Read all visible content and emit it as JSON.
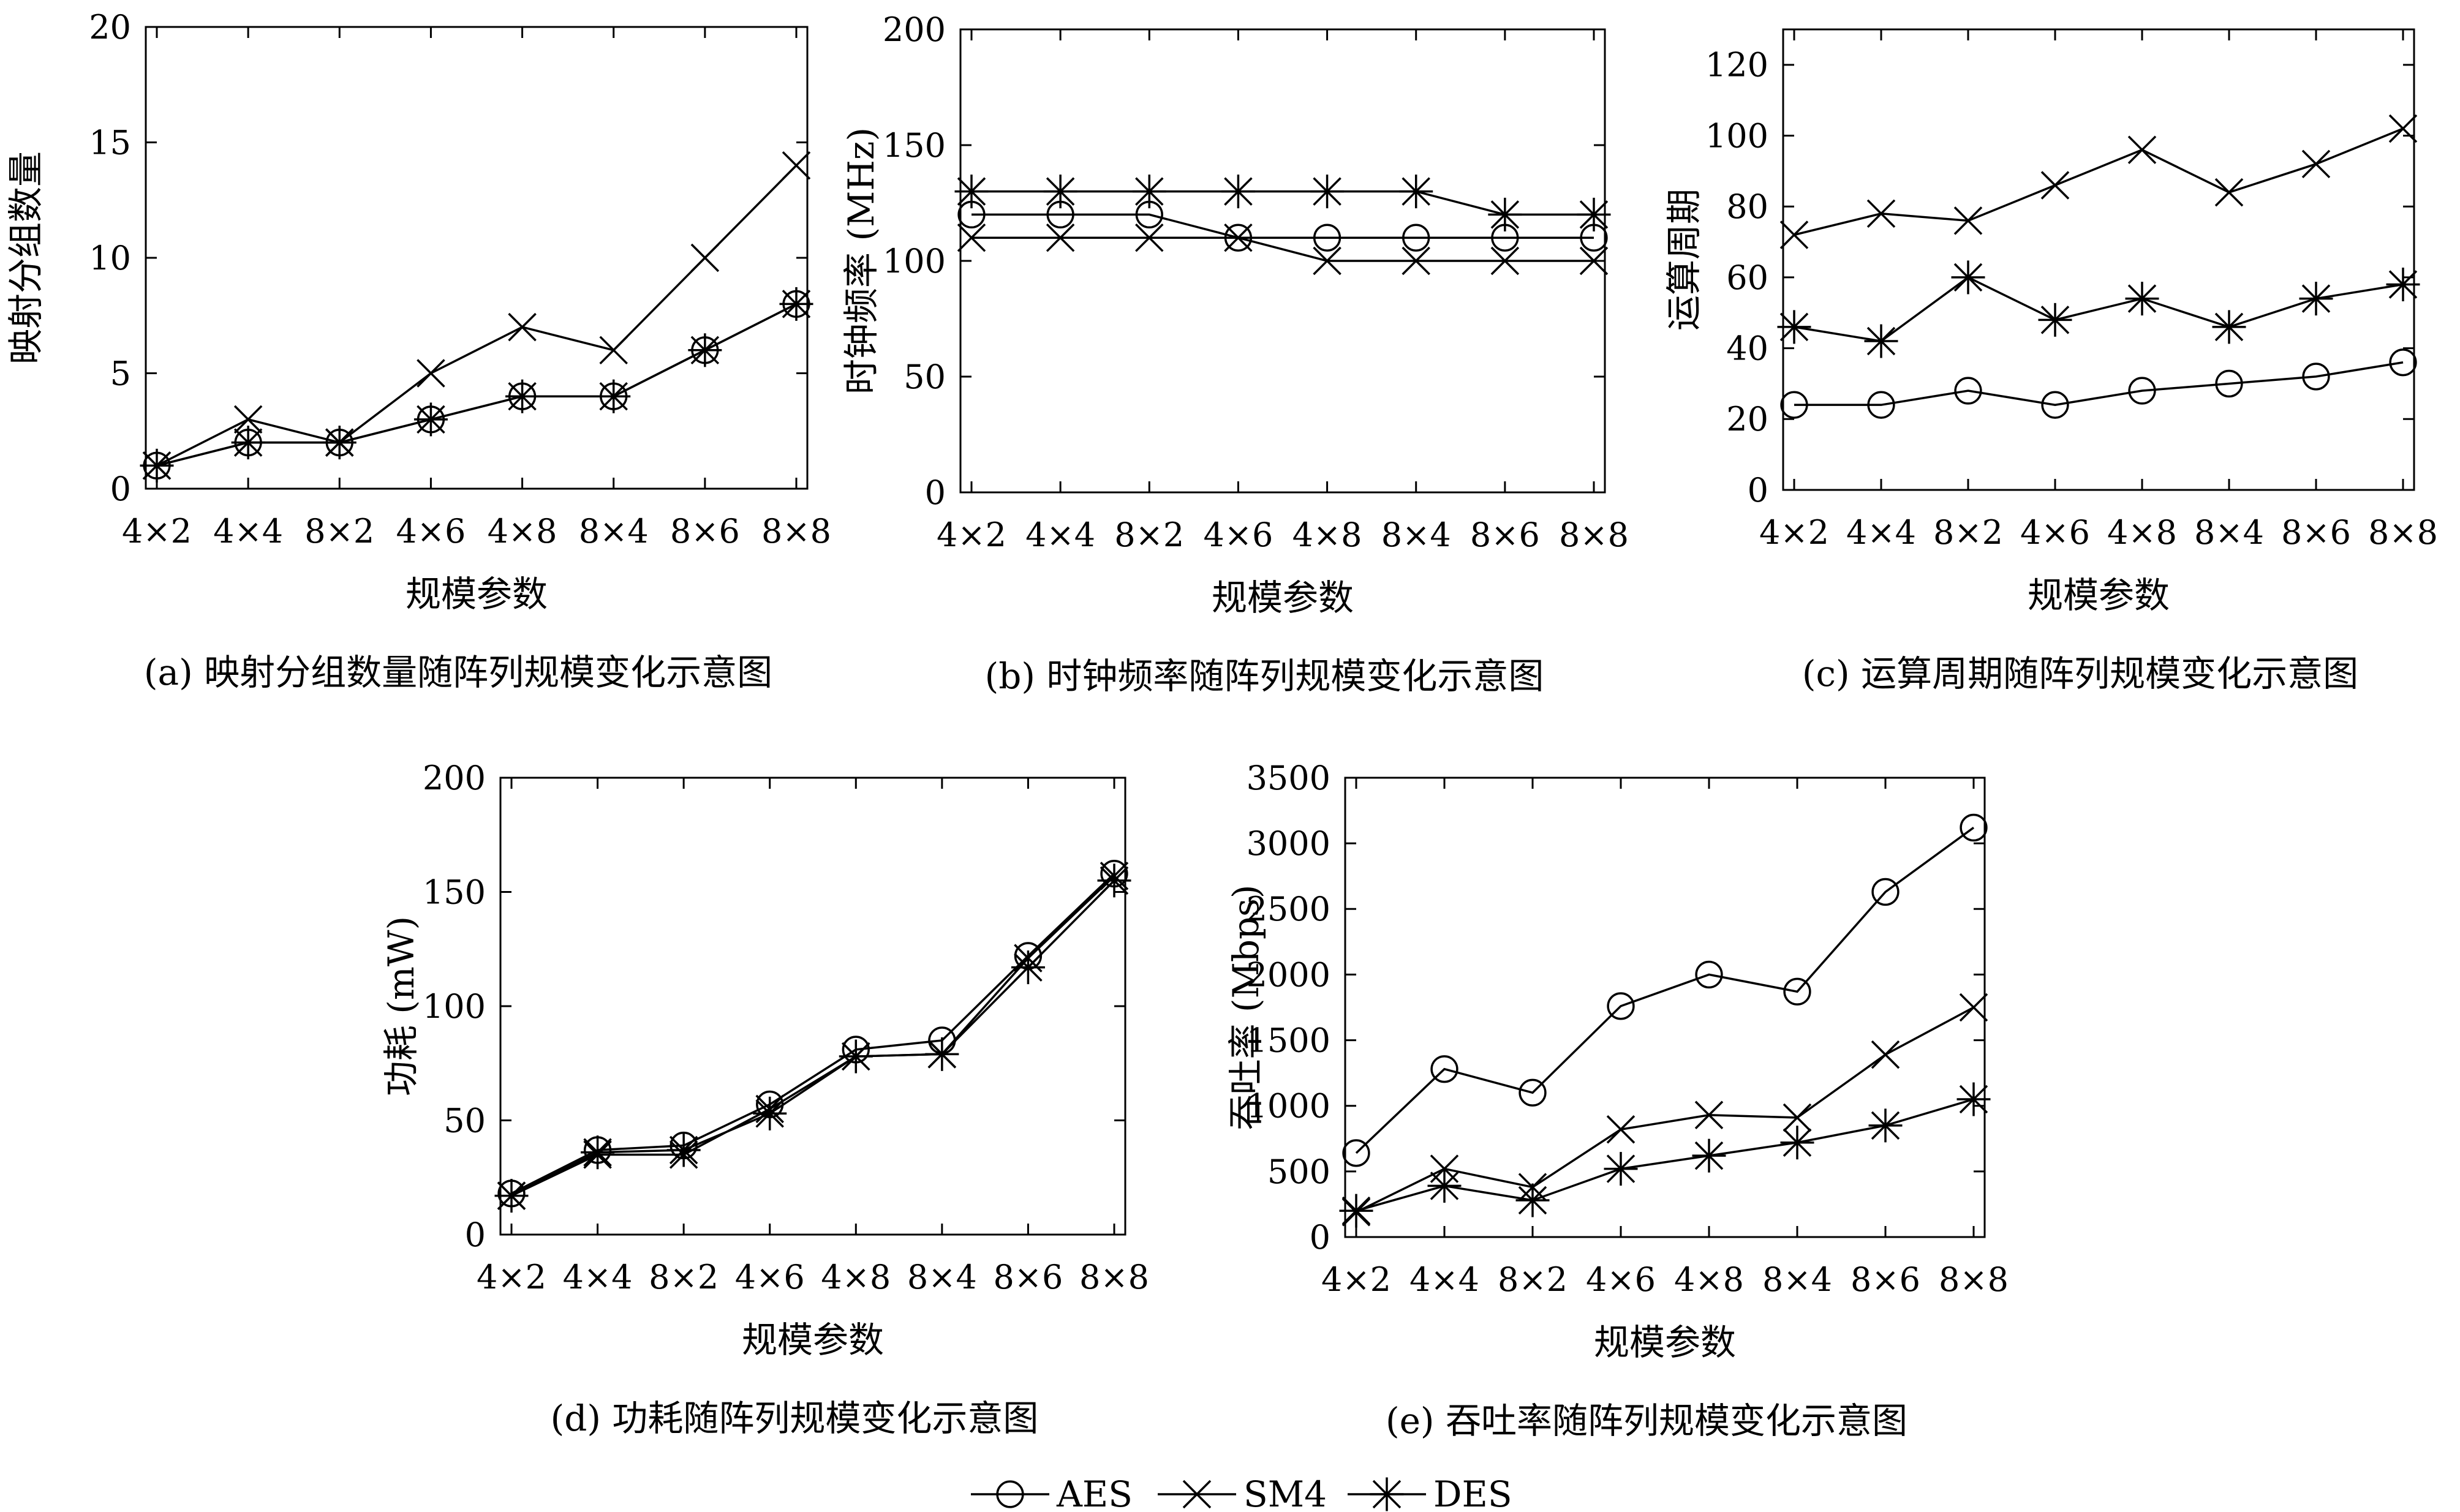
{
  "chart_data": [
    {
      "type": "line",
      "caption": "(a) 映射分组数量随阵列规模变化示意图",
      "xlabel": "规模参数",
      "ylabel": "映射分组数量",
      "categories": [
        "4×2",
        "4×4",
        "8×2",
        "4×6",
        "4×8",
        "8×4",
        "8×6",
        "8×8"
      ],
      "ylim": [
        0,
        20
      ],
      "yticks": [
        0,
        5,
        10,
        15,
        20
      ],
      "grid": false,
      "series": [
        {
          "name": "AES",
          "marker": "circle",
          "values": [
            1,
            2,
            2,
            3,
            4,
            4,
            6,
            8
          ]
        },
        {
          "name": "SM4",
          "marker": "cross",
          "values": [
            1,
            3,
            2,
            5,
            7,
            6,
            10,
            14
          ]
        },
        {
          "name": "DES",
          "marker": "asterisk",
          "values": [
            1,
            2,
            2,
            3,
            4,
            4,
            6,
            8
          ]
        }
      ]
    },
    {
      "type": "line",
      "caption": "(b) 时钟频率随阵列规模变化示意图",
      "xlabel": "规模参数",
      "ylabel": "时钟频率 (MHz)",
      "categories": [
        "4×2",
        "4×4",
        "8×2",
        "4×6",
        "4×8",
        "8×4",
        "8×6",
        "8×8"
      ],
      "ylim": [
        0,
        200
      ],
      "yticks": [
        0,
        50,
        100,
        150,
        200
      ],
      "grid": false,
      "series": [
        {
          "name": "AES",
          "marker": "circle",
          "values": [
            120,
            120,
            120,
            110,
            110,
            110,
            110,
            110
          ]
        },
        {
          "name": "SM4",
          "marker": "cross",
          "values": [
            110,
            110,
            110,
            110,
            100,
            100,
            100,
            100
          ]
        },
        {
          "name": "DES",
          "marker": "asterisk",
          "values": [
            130,
            130,
            130,
            130,
            130,
            130,
            120,
            120
          ]
        }
      ]
    },
    {
      "type": "line",
      "caption": "(c) 运算周期随阵列规模变化示意图",
      "xlabel": "规模参数",
      "ylabel": "运算周期",
      "categories": [
        "4×2",
        "4×4",
        "8×2",
        "4×6",
        "4×8",
        "8×4",
        "8×6",
        "8×8"
      ],
      "ylim": [
        0,
        130
      ],
      "yticks": [
        0,
        20,
        40,
        60,
        80,
        100,
        120
      ],
      "grid": false,
      "series": [
        {
          "name": "AES",
          "marker": "circle",
          "values": [
            24,
            24,
            28,
            24,
            28,
            30,
            32,
            36
          ]
        },
        {
          "name": "SM4",
          "marker": "cross",
          "values": [
            72,
            78,
            76,
            86,
            96,
            84,
            92,
            102
          ]
        },
        {
          "name": "DES",
          "marker": "asterisk",
          "values": [
            46,
            42,
            60,
            48,
            54,
            46,
            54,
            58
          ]
        }
      ]
    },
    {
      "type": "line",
      "caption": "(d) 功耗随阵列规模变化示意图",
      "xlabel": "规模参数",
      "ylabel": "功耗 (mW)",
      "categories": [
        "4×2",
        "4×4",
        "8×2",
        "4×6",
        "4×8",
        "8×4",
        "8×6",
        "8×8"
      ],
      "ylim": [
        0,
        200
      ],
      "yticks": [
        0,
        50,
        100,
        150,
        200
      ],
      "grid": false,
      "series": [
        {
          "name": "AES",
          "marker": "circle",
          "values": [
            18,
            37,
            39,
            57,
            81,
            85,
            122,
            158
          ]
        },
        {
          "name": "SM4",
          "marker": "cross",
          "values": [
            17,
            35,
            35,
            55,
            78,
            79,
            121,
            157
          ]
        },
        {
          "name": "DES",
          "marker": "asterisk",
          "values": [
            17,
            36,
            37,
            53,
            78,
            79,
            117,
            155
          ]
        }
      ]
    },
    {
      "type": "line",
      "caption": "(e) 吞吐率随阵列规模变化示意图",
      "xlabel": "规模参数",
      "ylabel": "吞吐率 (Mbps)",
      "categories": [
        "4×2",
        "4×4",
        "8×2",
        "4×6",
        "4×8",
        "8×4",
        "8×6",
        "8×8"
      ],
      "ylim": [
        0,
        3500
      ],
      "yticks": [
        0,
        500,
        1000,
        1500,
        2000,
        2500,
        3000,
        3500
      ],
      "grid": false,
      "series": [
        {
          "name": "AES",
          "marker": "circle",
          "values": [
            640,
            1280,
            1100,
            1760,
            2000,
            1870,
            2630,
            3120
          ]
        },
        {
          "name": "SM4",
          "marker": "cross",
          "values": [
            190,
            520,
            380,
            820,
            930,
            910,
            1390,
            1750
          ]
        },
        {
          "name": "DES",
          "marker": "asterisk",
          "values": [
            200,
            390,
            280,
            520,
            620,
            720,
            850,
            1050
          ]
        }
      ]
    }
  ],
  "legend": {
    "placement": "bottom-center",
    "entries": [
      {
        "name": "AES",
        "marker": "circle"
      },
      {
        "name": "SM4",
        "marker": "cross"
      },
      {
        "name": "DES",
        "marker": "asterisk"
      }
    ]
  }
}
